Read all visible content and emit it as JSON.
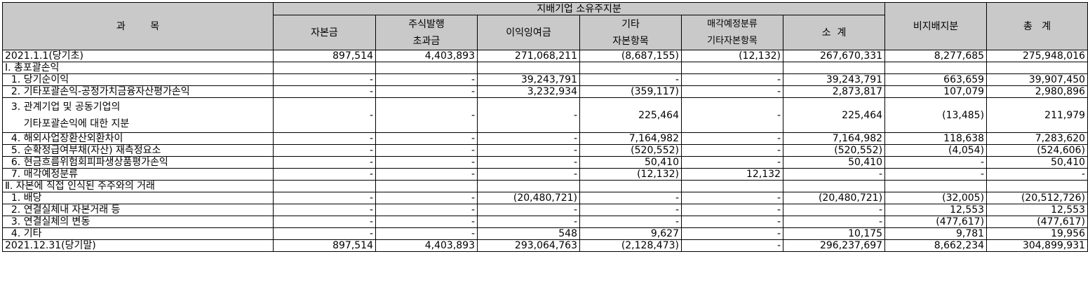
{
  "header": {
    "subject": "과        목",
    "group": "지배기업 소유주지분",
    "cols": [
      {
        "l1": "자본금",
        "l2": ""
      },
      {
        "l1": "주식발행",
        "l2": "초과금"
      },
      {
        "l1": "이익잉여금",
        "l2": ""
      },
      {
        "l1": "기타",
        "l2": "자본항목"
      },
      {
        "l1": "매각예정분류",
        "l2": "기타자본항목"
      },
      {
        "l1": "소  계",
        "l2": ""
      }
    ],
    "nci": "비지배지분",
    "total": "총   계"
  },
  "rows": [
    {
      "label": "2021.1.1(당기초)",
      "v": [
        "897,514",
        "4,403,893",
        "271,068,211",
        "(8,687,155)",
        "(12,132)",
        "267,670,331",
        "8,277,685",
        "275,948,016"
      ]
    },
    {
      "label": "Ⅰ. 총포괄손익",
      "v": [
        "",
        "",
        "",
        "",
        "",
        "",
        "",
        ""
      ]
    },
    {
      "label": "  1. 당기순이익",
      "v": [
        "-",
        "-",
        "39,243,791",
        "-",
        "-",
        "39,243,791",
        "663,659",
        "39,907,450"
      ]
    },
    {
      "label": "  2. 기타포괄손익-공정가치금융자산평가손익",
      "v": [
        "-",
        "-",
        "3,232,934",
        "(359,117)",
        "-",
        "2,873,817",
        "107,079",
        "2,980,896"
      ]
    },
    {
      "label": "  3. 관계기업 및 공동기업의",
      "label2": "      기타포괄손익에 대한 지분",
      "v": [
        "-",
        "-",
        "-",
        "225,464",
        "-",
        "225,464",
        "(13,485)",
        "211,979"
      ]
    },
    {
      "label": "  4. 해외사업장환산외환차이",
      "v": [
        "-",
        "-",
        "-",
        "7,164,982",
        "-",
        "7,164,982",
        "118,638",
        "7,283,620"
      ]
    },
    {
      "label": "  5. 순확정급여부채(자산) 재측정요소",
      "v": [
        "-",
        "-",
        "-",
        "(520,552)",
        "-",
        "(520,552)",
        "(4,054)",
        "(524,606)"
      ]
    },
    {
      "label": "  6. 현금흐름위험회피파생상품평가손익",
      "v": [
        "-",
        "-",
        "-",
        "50,410",
        "-",
        "50,410",
        "-",
        "50,410"
      ]
    },
    {
      "label": "  7. 매각예정분류",
      "v": [
        "-",
        "-",
        "-",
        "(12,132)",
        "12,132",
        "-",
        "-",
        "-"
      ]
    },
    {
      "label": "Ⅱ. 자본에 직접 인식된 주주와의 거래",
      "v": [
        "",
        "",
        "",
        "",
        "",
        "",
        "",
        ""
      ]
    },
    {
      "label": "  1. 배당",
      "v": [
        "-",
        "-",
        "(20,480,721)",
        "-",
        "-",
        "(20,480,721)",
        "(32,005)",
        "(20,512,726)"
      ]
    },
    {
      "label": "  2. 연결실체내 자본거래 등",
      "v": [
        "-",
        "-",
        "-",
        "-",
        "-",
        "-",
        "12,553",
        "12,553"
      ]
    },
    {
      "label": "  3. 연결실체의 변동",
      "v": [
        "-",
        "-",
        "-",
        "-",
        "-",
        "-",
        "(477,617)",
        "(477,617)"
      ]
    },
    {
      "label": "  4. 기타",
      "v": [
        "-",
        "-",
        "548",
        "9,627",
        "-",
        "10,175",
        "9,781",
        "19,956"
      ]
    },
    {
      "label": "2021.12.31(당기말)",
      "v": [
        "897,514",
        "4,403,893",
        "293,064,763",
        "(2,128,473)",
        "-",
        "296,237,697",
        "8,662,234",
        "304,899,931"
      ]
    }
  ]
}
